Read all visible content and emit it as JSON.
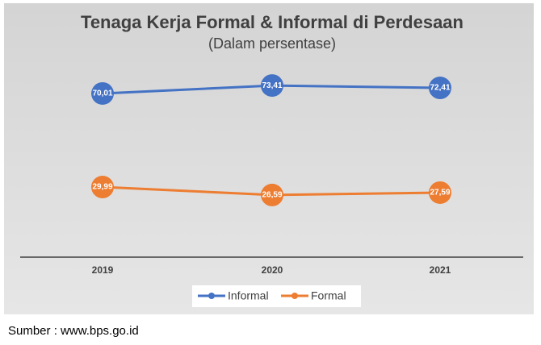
{
  "chart_data": {
    "type": "line",
    "title": "Tenaga Kerja Formal & Informal di Perdesaan",
    "subtitle": "(Dalam persentase)",
    "categories": [
      "2019",
      "2020",
      "2021"
    ],
    "series": [
      {
        "name": "Informal",
        "color": "#4472c4",
        "values": [
          70.01,
          73.41,
          72.41
        ],
        "value_labels": [
          "70,01",
          "73,41",
          "72,41"
        ]
      },
      {
        "name": "Formal",
        "color": "#ed7d31",
        "values": [
          29.99,
          26.59,
          27.59
        ],
        "value_labels": [
          "29,99",
          "26,59",
          "27,59"
        ]
      }
    ],
    "ylim": [
      0,
      80
    ],
    "legend": "bottom"
  },
  "source": "Sumber : www.bps.go.id"
}
